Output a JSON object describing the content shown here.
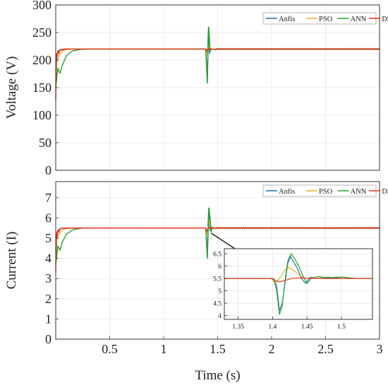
{
  "chart_data": [
    {
      "type": "line",
      "title": "",
      "xlabel": "",
      "ylabel": "Voltage (V)",
      "xlim": [
        0,
        3
      ],
      "ylim": [
        0,
        300
      ],
      "yticks": [
        0,
        50,
        100,
        150,
        200,
        250,
        300
      ],
      "legend_position": "top-right",
      "grid": true,
      "steady_state": 220,
      "disturbance_time": 1.41,
      "series": [
        {
          "name": "Anfis",
          "color": "#1f77b4",
          "points": [
            [
              0,
              150
            ],
            [
              0.01,
              205
            ],
            [
              0.02,
              214
            ],
            [
              0.04,
              219
            ],
            [
              0.08,
              220
            ],
            [
              1.39,
              220
            ],
            [
              1.405,
              160
            ],
            [
              1.41,
              230
            ],
            [
              1.415,
              258
            ],
            [
              1.42,
              235
            ],
            [
              1.425,
              212
            ],
            [
              1.43,
              221
            ],
            [
              1.45,
              220
            ],
            [
              3,
              220
            ]
          ]
        },
        {
          "name": "PSO",
          "color": "#f2b134",
          "points": [
            [
              0,
              150
            ],
            [
              0.01,
              195
            ],
            [
              0.03,
              208
            ],
            [
              0.06,
              216
            ],
            [
              0.1,
              219
            ],
            [
              0.2,
              220
            ],
            [
              1.39,
              220
            ],
            [
              1.405,
              210
            ],
            [
              1.415,
              228
            ],
            [
              1.425,
              223
            ],
            [
              1.44,
              219
            ],
            [
              1.46,
              220
            ],
            [
              3,
              220
            ]
          ]
        },
        {
          "name": "ANN",
          "color": "#2ca02c",
          "points": [
            [
              0,
              150
            ],
            [
              0.02,
              185
            ],
            [
              0.04,
              176
            ],
            [
              0.06,
              190
            ],
            [
              0.1,
              208
            ],
            [
              0.15,
              216
            ],
            [
              0.22,
              219
            ],
            [
              0.3,
              220
            ],
            [
              1.39,
              220
            ],
            [
              1.405,
              158
            ],
            [
              1.412,
              225
            ],
            [
              1.418,
              260
            ],
            [
              1.424,
              240
            ],
            [
              1.43,
              215
            ],
            [
              1.44,
              220
            ],
            [
              3,
              220
            ]
          ]
        },
        {
          "name": "DSR*",
          "color": "#e8351f",
          "points": [
            [
              0,
              128
            ],
            [
              0.005,
              205
            ],
            [
              0.01,
              212
            ],
            [
              0.015,
              207
            ],
            [
              0.02,
              217
            ],
            [
              0.03,
              212
            ],
            [
              0.04,
              219
            ],
            [
              0.06,
              218
            ],
            [
              0.08,
              220
            ],
            [
              1.39,
              220
            ],
            [
              1.4,
              216
            ],
            [
              1.41,
              222
            ],
            [
              1.42,
              219
            ],
            [
              1.44,
              220
            ],
            [
              3,
              220
            ]
          ]
        }
      ]
    },
    {
      "type": "line",
      "title": "",
      "xlabel": "Time (s)",
      "ylabel": "Current (I)",
      "xlim": [
        0,
        3
      ],
      "ylim": [
        0,
        7.8
      ],
      "yticks": [
        0,
        1,
        2,
        3,
        4,
        5,
        6,
        7
      ],
      "xticks": [
        0.5,
        1,
        1.5,
        2,
        2.5,
        3
      ],
      "legend_position": "top-right",
      "grid": true,
      "steady_state": 5.5,
      "series": [
        {
          "name": "Anfis",
          "color": "#1f77b4",
          "points": [
            [
              0,
              3.7
            ],
            [
              0.01,
              5.1
            ],
            [
              0.02,
              5.4
            ],
            [
              0.05,
              5.48
            ],
            [
              0.1,
              5.5
            ],
            [
              1.39,
              5.5
            ],
            [
              1.405,
              4.0
            ],
            [
              1.41,
              5.4
            ],
            [
              1.417,
              6.45
            ],
            [
              1.423,
              5.9
            ],
            [
              1.43,
              5.4
            ],
            [
              1.44,
              5.52
            ],
            [
              1.46,
              5.5
            ],
            [
              3,
              5.5
            ]
          ]
        },
        {
          "name": "PSO",
          "color": "#f2b134",
          "points": [
            [
              0,
              3.7
            ],
            [
              0.01,
              4.9
            ],
            [
              0.03,
              5.2
            ],
            [
              0.06,
              5.4
            ],
            [
              0.1,
              5.48
            ],
            [
              0.2,
              5.5
            ],
            [
              1.39,
              5.5
            ],
            [
              1.405,
              5.2
            ],
            [
              1.42,
              5.9
            ],
            [
              1.435,
              5.55
            ],
            [
              1.45,
              5.48
            ],
            [
              1.47,
              5.5
            ],
            [
              3,
              5.5
            ]
          ]
        },
        {
          "name": "ANN",
          "color": "#2ca02c",
          "points": [
            [
              0,
              3.7
            ],
            [
              0.02,
              4.6
            ],
            [
              0.04,
              4.4
            ],
            [
              0.06,
              4.8
            ],
            [
              0.1,
              5.2
            ],
            [
              0.16,
              5.42
            ],
            [
              0.25,
              5.5
            ],
            [
              1.39,
              5.5
            ],
            [
              1.405,
              4.05
            ],
            [
              1.412,
              5.3
            ],
            [
              1.42,
              6.5
            ],
            [
              1.43,
              6.0
            ],
            [
              1.44,
              5.3
            ],
            [
              1.45,
              5.55
            ],
            [
              1.47,
              5.5
            ],
            [
              3,
              5.5
            ]
          ]
        },
        {
          "name": "DSR*",
          "color": "#e8351f",
          "points": [
            [
              0,
              3.3
            ],
            [
              0.005,
              5.0
            ],
            [
              0.01,
              5.3
            ],
            [
              0.015,
              5.1
            ],
            [
              0.02,
              5.4
            ],
            [
              0.03,
              5.3
            ],
            [
              0.04,
              5.48
            ],
            [
              0.08,
              5.5
            ],
            [
              1.39,
              5.5
            ],
            [
              1.405,
              5.35
            ],
            [
              1.415,
              5.55
            ],
            [
              1.43,
              5.47
            ],
            [
              1.45,
              5.5
            ],
            [
              3,
              5.5
            ]
          ]
        }
      ]
    },
    {
      "type": "line",
      "title": "",
      "xlabel": "",
      "ylabel": "",
      "xlim": [
        1.33,
        1.545
      ],
      "ylim": [
        3.85,
        6.7
      ],
      "yticks": [
        4,
        4.5,
        5,
        5.5,
        6,
        6.5
      ],
      "xticks": [
        1.35,
        1.4,
        1.45,
        1.5
      ],
      "grid": true,
      "role": "inset zoom of the current plot around the disturbance",
      "series": [
        {
          "name": "Anfis",
          "color": "#1f77b4",
          "points": [
            [
              1.33,
              5.5
            ],
            [
              1.398,
              5.5
            ],
            [
              1.402,
              5.48
            ],
            [
              1.406,
              5.2
            ],
            [
              1.41,
              4.2
            ],
            [
              1.414,
              4.5
            ],
            [
              1.418,
              5.3
            ],
            [
              1.422,
              6.1
            ],
            [
              1.426,
              6.38
            ],
            [
              1.43,
              6.2
            ],
            [
              1.436,
              5.9
            ],
            [
              1.442,
              5.5
            ],
            [
              1.448,
              5.3
            ],
            [
              1.455,
              5.55
            ],
            [
              1.465,
              5.5
            ],
            [
              1.48,
              5.55
            ],
            [
              1.5,
              5.5
            ],
            [
              1.545,
              5.5
            ]
          ]
        },
        {
          "name": "PSO",
          "color": "#f2b134",
          "points": [
            [
              1.33,
              5.5
            ],
            [
              1.398,
              5.5
            ],
            [
              1.404,
              5.3
            ],
            [
              1.41,
              5.5
            ],
            [
              1.418,
              5.85
            ],
            [
              1.424,
              5.95
            ],
            [
              1.432,
              5.8
            ],
            [
              1.44,
              5.6
            ],
            [
              1.448,
              5.5
            ],
            [
              1.46,
              5.52
            ],
            [
              1.48,
              5.5
            ],
            [
              1.545,
              5.5
            ]
          ]
        },
        {
          "name": "ANN",
          "color": "#2ca02c",
          "points": [
            [
              1.33,
              5.5
            ],
            [
              1.398,
              5.5
            ],
            [
              1.402,
              5.45
            ],
            [
              1.406,
              5.0
            ],
            [
              1.41,
              4.05
            ],
            [
              1.414,
              4.4
            ],
            [
              1.418,
              5.4
            ],
            [
              1.422,
              6.2
            ],
            [
              1.427,
              6.5
            ],
            [
              1.432,
              6.3
            ],
            [
              1.438,
              6.0
            ],
            [
              1.444,
              5.6
            ],
            [
              1.45,
              5.3
            ],
            [
              1.456,
              5.5
            ],
            [
              1.466,
              5.58
            ],
            [
              1.48,
              5.52
            ],
            [
              1.5,
              5.56
            ],
            [
              1.52,
              5.5
            ],
            [
              1.545,
              5.5
            ]
          ]
        },
        {
          "name": "DSR*",
          "color": "#e8351f",
          "points": [
            [
              1.33,
              5.5
            ],
            [
              1.398,
              5.5
            ],
            [
              1.404,
              5.42
            ],
            [
              1.41,
              5.36
            ],
            [
              1.418,
              5.42
            ],
            [
              1.428,
              5.5
            ],
            [
              1.44,
              5.52
            ],
            [
              1.46,
              5.5
            ],
            [
              1.545,
              5.5
            ]
          ]
        }
      ]
    }
  ]
}
